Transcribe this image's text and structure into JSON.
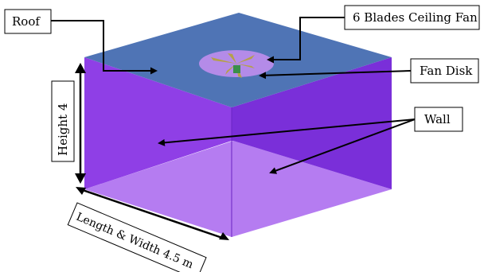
{
  "labels": {
    "roof": "Roof",
    "fan": "6 Blades Ceiling Fan",
    "fan_disk": "Fan Disk",
    "wall": "Wall",
    "height": "Height 4",
    "length_width": "Length & Width 4.5 m"
  },
  "colors": {
    "roof": "#4f74b5",
    "roof_edge": "#5a7fc0",
    "wall_left": "#8f3fe6",
    "wall_right": "#7a2fd9",
    "wall_back_left": "#a864ee",
    "floor": "#b57cf1",
    "fan_disk": "#b48be8",
    "blades": "#b5a04a",
    "hub": "#3a8f4a",
    "stroke": "#000000"
  }
}
